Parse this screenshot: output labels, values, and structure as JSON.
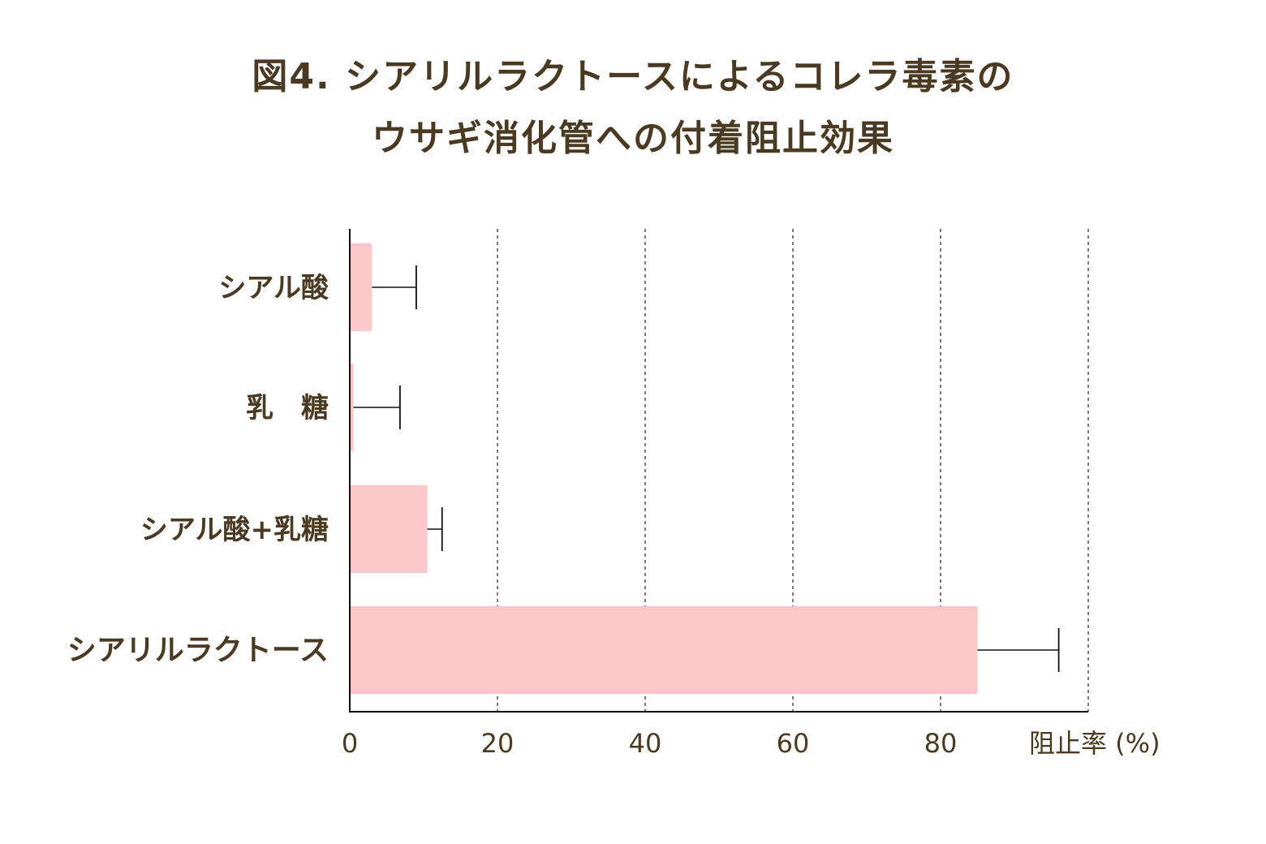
{
  "title": {
    "line1": "図4. シアリルラクトースによるコレラ毒素の",
    "line2": "ウサギ消化管への付着阻止効果"
  },
  "colors": {
    "bar": "#fdc6c8",
    "text": "#4a3a22",
    "axis": "#111111"
  },
  "chart_data": {
    "type": "bar",
    "orientation": "horizontal",
    "categories": [
      "シアル酸",
      "乳　糖",
      "シアル酸+乳糖",
      "シアリルラクトース"
    ],
    "values": [
      3,
      0.5,
      10.5,
      85
    ],
    "error_upper": [
      9,
      6.8,
      12.5,
      96
    ],
    "xlabel": "阻止率 (%)",
    "ylabel": "",
    "xlim": [
      0,
      100
    ],
    "xticks": [
      "0",
      "20",
      "40",
      "60",
      "80"
    ],
    "tick_values": [
      0,
      20,
      40,
      60,
      80
    ],
    "grid": "vertical dashed",
    "emphasized_category": "シアリルラクトース"
  }
}
